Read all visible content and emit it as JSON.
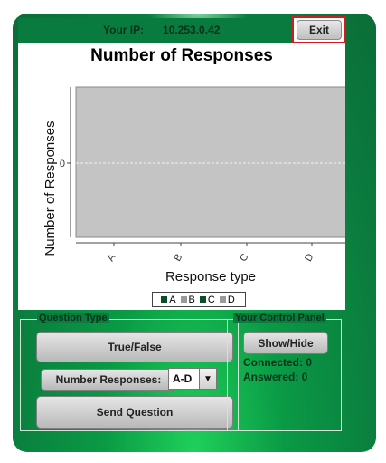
{
  "header": {
    "ip_label": "Your IP:",
    "ip_value": "10.253.0.42",
    "exit_label": "Exit"
  },
  "chart_data": {
    "type": "bar",
    "title": "Number of Responses",
    "xlabel": "Response type",
    "ylabel": "Number of Responses",
    "categories": [
      "A",
      "B",
      "C",
      "D"
    ],
    "series": [
      {
        "name": "A",
        "values": [
          0,
          0,
          0,
          0
        ]
      },
      {
        "name": "B",
        "values": [
          0,
          0,
          0,
          0
        ]
      },
      {
        "name": "C",
        "values": [
          0,
          0,
          0,
          0
        ]
      },
      {
        "name": "D",
        "values": [
          0,
          0,
          0,
          0
        ]
      }
    ],
    "y_ticks": [
      "0"
    ],
    "legend_placement": "bottom",
    "grid": true,
    "colors": {
      "A": "#0a4f2a",
      "B": "#9a9a9a",
      "C": "#0a4f2a",
      "D": "#9a9a9a"
    }
  },
  "question_type": {
    "legend": "Question Type",
    "true_false_label": "True/False",
    "number_responses_label": "Number Responses:",
    "range_value": "A-D",
    "send_label": "Send Question"
  },
  "control_panel": {
    "legend": "Your Control Panel",
    "show_hide_label": "Show/Hide",
    "connected_label": "Connected: 0",
    "answered_label": "Answered: 0"
  }
}
